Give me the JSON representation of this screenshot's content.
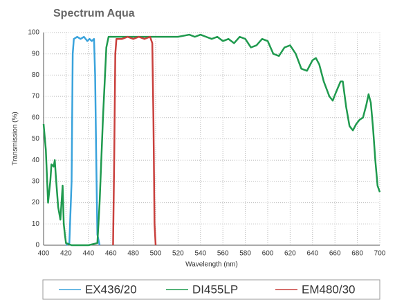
{
  "chart_data": {
    "type": "line",
    "title": "Spectrum Aqua",
    "x_label": "Wavelength (nm)",
    "y_label": "Transmission (%)",
    "xlim": [
      400,
      700
    ],
    "xticks": [
      400,
      420,
      440,
      460,
      480,
      500,
      520,
      540,
      560,
      580,
      600,
      620,
      640,
      660,
      680,
      700
    ],
    "ylim": [
      0,
      100
    ],
    "yticks": [
      0,
      10,
      20,
      30,
      40,
      50,
      60,
      70,
      80,
      90,
      100
    ],
    "grid": true,
    "legend": "bottom",
    "series": [
      {
        "name": "EX436/20",
        "color": "#3aa3dc",
        "x": [
          420,
          423,
          425,
          426,
          427,
          430,
          433,
          436,
          439,
          441,
          443,
          445,
          446,
          447,
          448,
          450
        ],
        "values": [
          0,
          1,
          30,
          90,
          97,
          98,
          97,
          98,
          96,
          97,
          96,
          97,
          80,
          40,
          5,
          0
        ]
      },
      {
        "name": "DI455LP",
        "color": "#1f9a4e",
        "x": [
          400,
          402,
          404,
          406,
          407,
          409,
          410,
          411,
          413,
          415,
          416,
          417,
          418,
          419,
          420,
          425,
          440,
          448,
          450,
          453,
          456,
          458,
          470,
          500,
          520,
          530,
          535,
          540,
          545,
          550,
          555,
          560,
          565,
          570,
          575,
          580,
          585,
          590,
          595,
          600,
          605,
          610,
          615,
          620,
          625,
          630,
          635,
          640,
          643,
          646,
          650,
          655,
          658,
          661,
          665,
          667,
          670,
          673,
          676,
          679,
          682,
          685,
          688,
          690,
          692,
          694,
          696,
          698,
          700
        ],
        "values": [
          57,
          45,
          20,
          30,
          38,
          37,
          40,
          32,
          18,
          12,
          20,
          28,
          10,
          5,
          1,
          0,
          0,
          1,
          20,
          60,
          93,
          98,
          98,
          98,
          98,
          99,
          98,
          99,
          98,
          97,
          98,
          96,
          97,
          95,
          98,
          97,
          93,
          94,
          97,
          96,
          90,
          89,
          93,
          94,
          90,
          83,
          82,
          87,
          88,
          85,
          77,
          70,
          68,
          72,
          77,
          77,
          65,
          56,
          54,
          57,
          59,
          60,
          66,
          71,
          67,
          55,
          40,
          28,
          25
        ]
      },
      {
        "name": "EM480/30",
        "color": "#c9403d",
        "x": [
          462,
          463,
          464,
          465,
          470,
          475,
          480,
          485,
          490,
          495,
          497,
          498,
          499,
          500
        ],
        "values": [
          0,
          40,
          90,
          97,
          97,
          98,
          97,
          98,
          97,
          98,
          95,
          60,
          10,
          0
        ]
      }
    ]
  }
}
